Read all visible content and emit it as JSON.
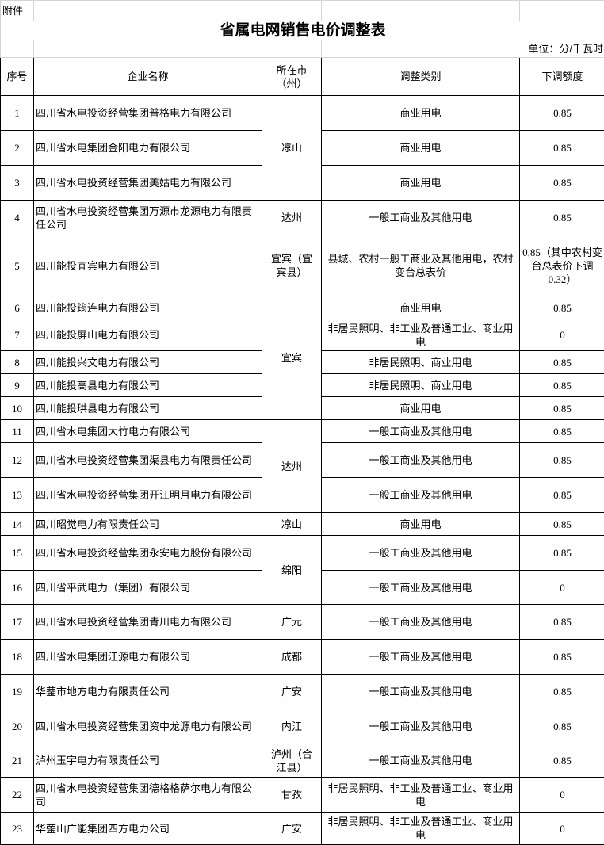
{
  "attachment_label": "附件",
  "title": "省属电网销售电价调整表",
  "unit": "单位：分/千瓦时",
  "headers": {
    "no": "序号",
    "company": "企业名称",
    "city": "所在市（州）",
    "category": "调整类别",
    "amount": "下调额度"
  },
  "groups": [
    {
      "city": "凉山",
      "rows": [
        {
          "no": "1",
          "company": "四川省水电投资经营集团普格电力有限公司",
          "category": "商业用电",
          "amount": "0.85"
        },
        {
          "no": "2",
          "company": "四川省水电集团金阳电力有限公司",
          "category": "商业用电",
          "amount": "0.85"
        },
        {
          "no": "3",
          "company": "四川省水电投资经营集团美姑电力有限公司",
          "category": "商业用电",
          "amount": "0.85"
        }
      ]
    },
    {
      "city": "达州",
      "rows": [
        {
          "no": "4",
          "company": "四川省水电投资经营集团万源市龙源电力有限责任公司",
          "category": "一般工商业及其他用电",
          "amount": "0.85"
        }
      ]
    },
    {
      "city": "宜宾（宜宾县）",
      "rows": [
        {
          "no": "5",
          "company": "四川能投宜宾电力有限公司",
          "category": "县城、农村一般工商业及其他用电，农村变台总表价",
          "amount": "0.85（其中农村变台总表价下调0.32）"
        }
      ]
    },
    {
      "city": "宜宾",
      "rows": [
        {
          "no": "6",
          "company": "四川能投筠连电力有限公司",
          "category": "商业用电",
          "amount": "0.85"
        },
        {
          "no": "7",
          "company": "四川能投屏山电力有限公司",
          "category": "非居民照明、非工业及普通工业、商业用电",
          "amount": "0"
        },
        {
          "no": "8",
          "company": "四川能投兴文电力有限公司",
          "category": "非居民照明、商业用电",
          "amount": "0.85"
        },
        {
          "no": "9",
          "company": "四川能投高县电力有限公司",
          "category": "非居民照明、商业用电",
          "amount": "0.85"
        },
        {
          "no": "10",
          "company": "四川能投珙县电力有限公司",
          "category": "商业用电",
          "amount": "0.85"
        }
      ]
    },
    {
      "city": "达州",
      "rows": [
        {
          "no": "11",
          "company": "四川省水电集团大竹电力有限公司",
          "category": "一般工商业及其他用电",
          "amount": "0.85"
        },
        {
          "no": "12",
          "company": "四川省水电投资经营集团渠县电力有限责任公司",
          "category": "一般工商业及其他用电",
          "amount": "0.85"
        },
        {
          "no": "13",
          "company": "四川省水电投资经营集团开江明月电力有限公司",
          "category": "一般工商业及其他用电",
          "amount": "0.85"
        }
      ]
    },
    {
      "city": "凉山",
      "rows": [
        {
          "no": "14",
          "company": "四川昭觉电力有限责任公司",
          "category": "商业用电",
          "amount": "0.85"
        }
      ]
    },
    {
      "city": "绵阳",
      "rows": [
        {
          "no": "15",
          "company": "四川省水电投资经营集团永安电力股份有限公司",
          "category": "一般工商业及其他用电",
          "amount": "0.85"
        },
        {
          "no": "16",
          "company": "四川省平武电力（集团）有限公司",
          "category": "一般工商业及其他用电",
          "amount": "0"
        }
      ]
    },
    {
      "city": "广元",
      "rows": [
        {
          "no": "17",
          "company": "四川省水电投资经营集团青川电力有限公司",
          "category": "一般工商业及其他用电",
          "amount": "0.85"
        }
      ]
    },
    {
      "city": "成都",
      "rows": [
        {
          "no": "18",
          "company": "四川省水电集团江源电力有限公司",
          "category": "一般工商业及其他用电",
          "amount": "0.85"
        }
      ]
    },
    {
      "city": "广安",
      "rows": [
        {
          "no": "19",
          "company": "华蓥市地方电力有限责任公司",
          "category": "一般工商业及其他用电",
          "amount": "0.85"
        }
      ]
    },
    {
      "city": "内江",
      "rows": [
        {
          "no": "20",
          "company": "四川省水电投资经营集团资中龙源电力有限公司",
          "category": "一般工商业及其他用电",
          "amount": "0.85"
        }
      ]
    },
    {
      "city": "泸州（合江县）",
      "rows": [
        {
          "no": "21",
          "company": "泸州玉宇电力有限责任公司",
          "category": "一般工商业及其他用电",
          "amount": "0.85"
        }
      ]
    },
    {
      "city": "甘孜",
      "rows": [
        {
          "no": "22",
          "company": "四川省水电投资经营集团德格格萨尔电力有限公司",
          "category": "非居民照明、非工业及普通工业、商业用电",
          "amount": "0"
        }
      ]
    },
    {
      "city": "广安",
      "rows": [
        {
          "no": "23",
          "company": "华蓥山广能集团四方电力公司",
          "category": "非居民照明、非工业及普通工业、商业用电",
          "amount": "0"
        }
      ]
    }
  ]
}
